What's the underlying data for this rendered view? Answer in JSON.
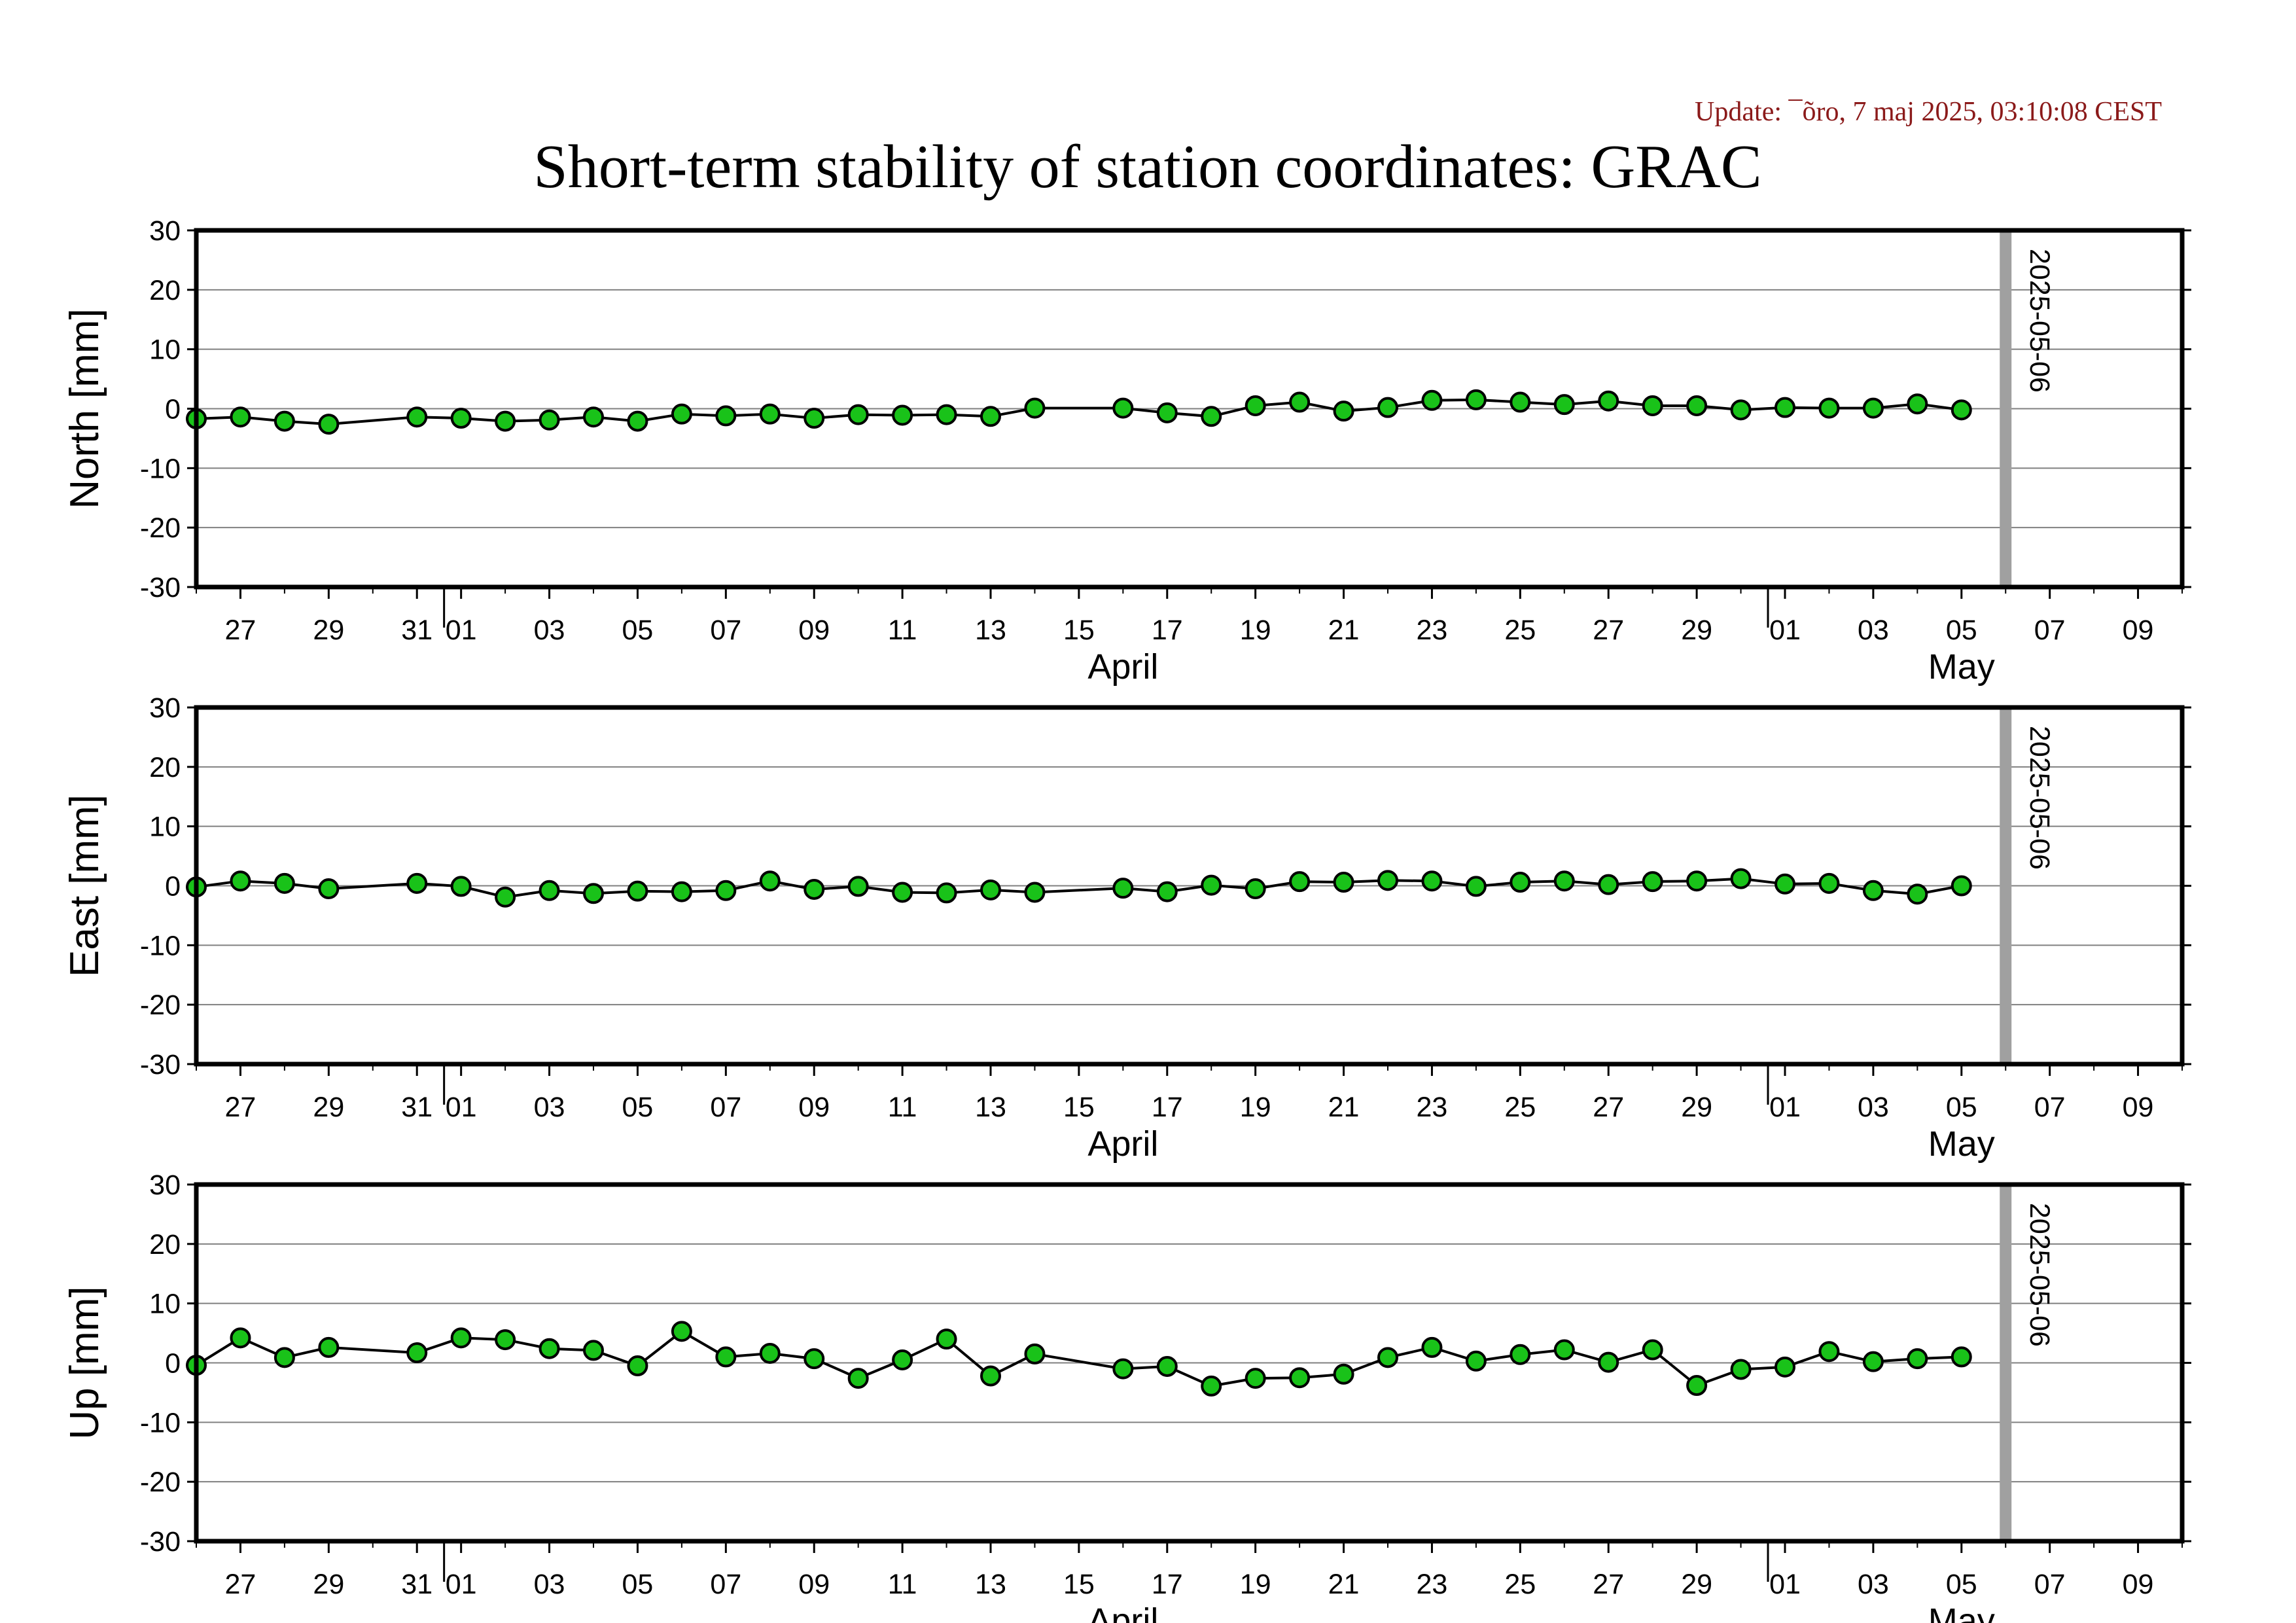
{
  "update_text": "Update: ¯õro, 7 maj 2025, 03:10:08 CEST",
  "title": "Short-term stability of station coordinates: GRAC",
  "colors": {
    "update": "#8b1a1a",
    "marker_fill": "#19c219",
    "marker_stroke": "#000000",
    "line": "#000000",
    "grid": "#808080",
    "epoch_line": "#a0a0a0",
    "frame": "#000000"
  },
  "chart_data": [
    {
      "type": "line",
      "ylabel": "North [mm]",
      "ylim": [
        -30,
        30
      ],
      "yticks": [
        -30,
        -20,
        -10,
        0,
        10,
        20,
        30
      ],
      "x_range": [
        "2025-03-26",
        "2025-05-10"
      ],
      "x_tick_labels": [
        "27",
        "29",
        "31",
        "01",
        "03",
        "05",
        "07",
        "09",
        "11",
        "13",
        "15",
        "17",
        "19",
        "21",
        "23",
        "25",
        "27",
        "29",
        "01",
        "03",
        "05",
        "07",
        "09"
      ],
      "month_labels": [
        "April",
        "May"
      ],
      "grid": true,
      "marker_line": "2025-05-06",
      "x": [
        "2025-03-26",
        "2025-03-27",
        "2025-03-28",
        "2025-03-29",
        "2025-03-31",
        "2025-04-01",
        "2025-04-02",
        "2025-04-03",
        "2025-04-04",
        "2025-04-05",
        "2025-04-06",
        "2025-04-07",
        "2025-04-08",
        "2025-04-09",
        "2025-04-10",
        "2025-04-11",
        "2025-04-12",
        "2025-04-13",
        "2025-04-14",
        "2025-04-16",
        "2025-04-17",
        "2025-04-18",
        "2025-04-19",
        "2025-04-20",
        "2025-04-21",
        "2025-04-22",
        "2025-04-23",
        "2025-04-24",
        "2025-04-25",
        "2025-04-26",
        "2025-04-27",
        "2025-04-28",
        "2025-04-29",
        "2025-04-30",
        "2025-05-01",
        "2025-05-02",
        "2025-05-03",
        "2025-05-04",
        "2025-05-05"
      ],
      "values": [
        -1.7,
        -1.4,
        -2.1,
        -2.6,
        -1.4,
        -1.6,
        -2.1,
        -1.9,
        -1.4,
        -2.1,
        -0.9,
        -1.2,
        -0.9,
        -1.6,
        -1.0,
        -1.1,
        -1.0,
        -1.3,
        0.1,
        0.1,
        -0.7,
        -1.3,
        0.5,
        1.1,
        -0.4,
        0.2,
        1.4,
        1.5,
        1.1,
        0.7,
        1.3,
        0.5,
        0.5,
        -0.2,
        0.2,
        0.1,
        0.1,
        0.8,
        -0.2
      ]
    },
    {
      "type": "line",
      "ylabel": "East [mm]",
      "ylim": [
        -30,
        30
      ],
      "yticks": [
        -30,
        -20,
        -10,
        0,
        10,
        20,
        30
      ],
      "x_range": [
        "2025-03-26",
        "2025-05-10"
      ],
      "x_tick_labels": [
        "27",
        "29",
        "31",
        "01",
        "03",
        "05",
        "07",
        "09",
        "11",
        "13",
        "15",
        "17",
        "19",
        "21",
        "23",
        "25",
        "27",
        "29",
        "01",
        "03",
        "05",
        "07",
        "09"
      ],
      "month_labels": [
        "April",
        "May"
      ],
      "grid": true,
      "marker_line": "2025-05-06",
      "x": [
        "2025-03-26",
        "2025-03-27",
        "2025-03-28",
        "2025-03-29",
        "2025-03-31",
        "2025-04-01",
        "2025-04-02",
        "2025-04-03",
        "2025-04-04",
        "2025-04-05",
        "2025-04-06",
        "2025-04-07",
        "2025-04-08",
        "2025-04-09",
        "2025-04-10",
        "2025-04-11",
        "2025-04-12",
        "2025-04-13",
        "2025-04-14",
        "2025-04-16",
        "2025-04-17",
        "2025-04-18",
        "2025-04-19",
        "2025-04-20",
        "2025-04-21",
        "2025-04-22",
        "2025-04-23",
        "2025-04-24",
        "2025-04-25",
        "2025-04-26",
        "2025-04-27",
        "2025-04-28",
        "2025-04-29",
        "2025-04-30",
        "2025-05-01",
        "2025-05-02",
        "2025-05-03",
        "2025-05-04",
        "2025-05-05"
      ],
      "values": [
        -0.2,
        0.8,
        0.4,
        -0.5,
        0.4,
        -0.1,
        -1.9,
        -0.8,
        -1.3,
        -0.9,
        -1.0,
        -0.8,
        0.8,
        -0.6,
        -0.1,
        -1.1,
        -1.2,
        -0.7,
        -1.1,
        -0.4,
        -1.0,
        0.1,
        -0.5,
        0.7,
        0.6,
        0.9,
        0.8,
        -0.1,
        0.6,
        0.8,
        0.2,
        0.7,
        0.8,
        1.2,
        0.3,
        0.4,
        -0.8,
        -1.4,
        0.0
      ]
    },
    {
      "type": "line",
      "ylabel": "Up [mm]",
      "ylim": [
        -30,
        30
      ],
      "yticks": [
        -30,
        -20,
        -10,
        0,
        10,
        20,
        30
      ],
      "x_range": [
        "2025-03-26",
        "2025-05-10"
      ],
      "x_tick_labels": [
        "27",
        "29",
        "31",
        "01",
        "03",
        "05",
        "07",
        "09",
        "11",
        "13",
        "15",
        "17",
        "19",
        "21",
        "23",
        "25",
        "27",
        "29",
        "01",
        "03",
        "05",
        "07",
        "09"
      ],
      "month_labels": [
        "April",
        "May"
      ],
      "grid": true,
      "marker_line": "2025-05-06",
      "x": [
        "2025-03-26",
        "2025-03-27",
        "2025-03-28",
        "2025-03-29",
        "2025-03-31",
        "2025-04-01",
        "2025-04-02",
        "2025-04-03",
        "2025-04-04",
        "2025-04-05",
        "2025-04-06",
        "2025-04-07",
        "2025-04-08",
        "2025-04-09",
        "2025-04-10",
        "2025-04-11",
        "2025-04-12",
        "2025-04-13",
        "2025-04-14",
        "2025-04-16",
        "2025-04-17",
        "2025-04-18",
        "2025-04-19",
        "2025-04-20",
        "2025-04-21",
        "2025-04-22",
        "2025-04-23",
        "2025-04-24",
        "2025-04-25",
        "2025-04-26",
        "2025-04-27",
        "2025-04-28",
        "2025-04-29",
        "2025-04-30",
        "2025-05-01",
        "2025-05-02",
        "2025-05-03",
        "2025-05-04",
        "2025-05-05"
      ],
      "values": [
        -0.4,
        4.2,
        0.9,
        2.6,
        1.7,
        4.2,
        3.9,
        2.4,
        2.1,
        -0.5,
        5.3,
        1.0,
        1.6,
        0.7,
        -2.6,
        0.5,
        4.0,
        -2.2,
        1.5,
        -1.0,
        -0.6,
        -3.9,
        -2.6,
        -2.5,
        -1.9,
        0.9,
        2.6,
        0.3,
        1.4,
        2.2,
        0.1,
        2.2,
        -3.8,
        -1.1,
        -0.7,
        1.9,
        0.2,
        0.7,
        1.0
      ]
    }
  ]
}
